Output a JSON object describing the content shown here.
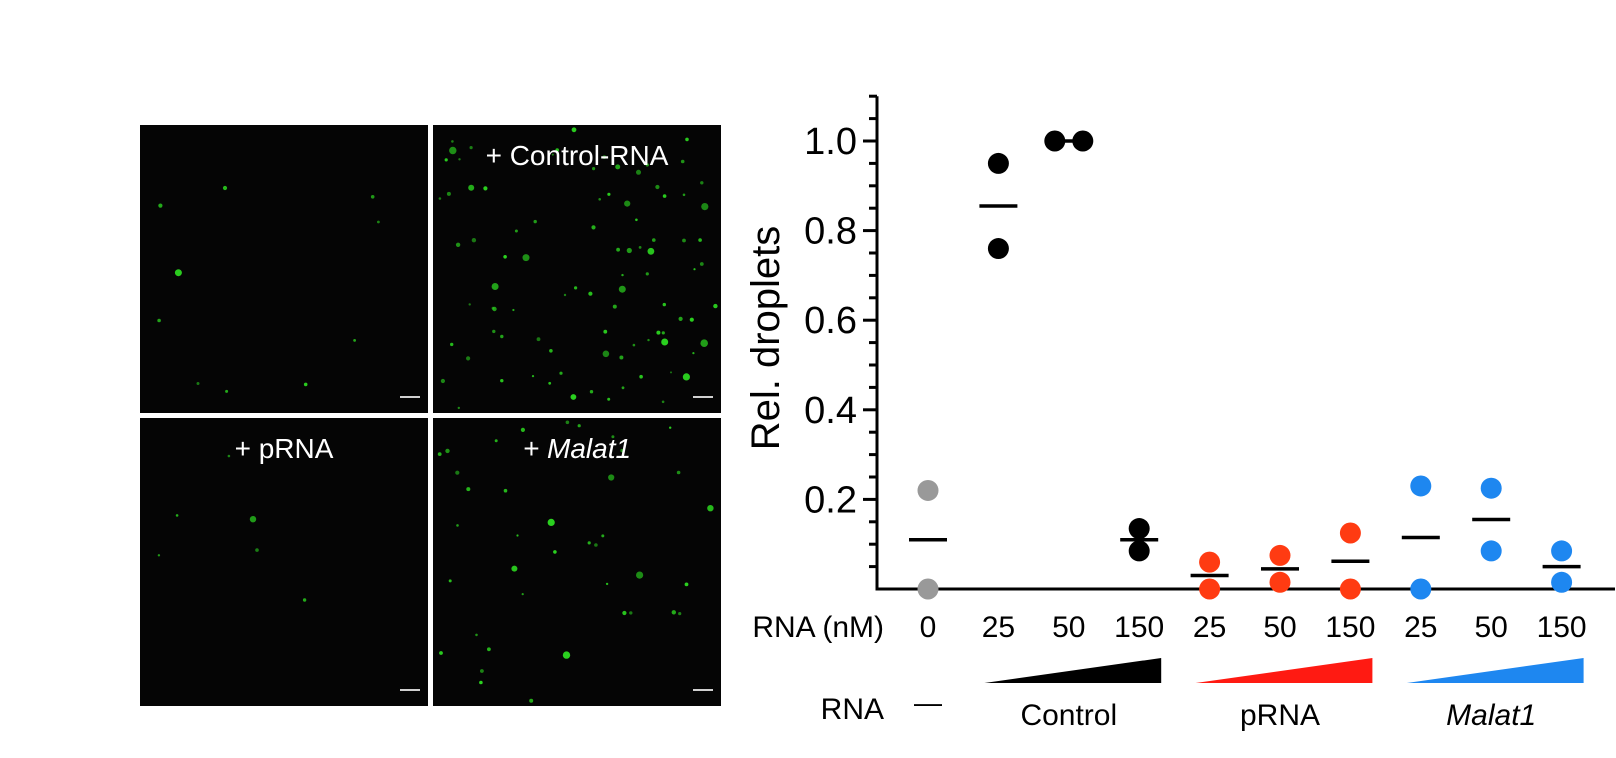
{
  "micrographs": {
    "panels": [
      {
        "label": "",
        "label_italic": false,
        "density": 10,
        "color": "#2bd21f"
      },
      {
        "label": "+ Control-RNA",
        "label_italic": false,
        "density": 90,
        "color": "#2bd21f"
      },
      {
        "label": "+ pRNA",
        "label_italic": false,
        "density": 6,
        "color": "#2bd21f"
      },
      {
        "label": "+ Malat1",
        "label_italic": true,
        "density": 40,
        "color": "#2bd21f"
      }
    ]
  },
  "chart_data": {
    "type": "scatter",
    "ylabel": "Rel. droplets",
    "xlabel": "RNA (nM)",
    "ylim": [
      0,
      1.1
    ],
    "yticks": [
      0.2,
      0.4,
      0.6,
      0.8,
      1.0
    ],
    "ytick_labels": [
      "0.2",
      "0.4",
      "0.6",
      "0.8",
      "1.0"
    ],
    "grid": false,
    "categories": [
      "0",
      "25",
      "50",
      "150",
      "25",
      "50",
      "150",
      "25",
      "50",
      "150"
    ],
    "points": [
      {
        "x": 0,
        "y": [
          0.22,
          0.0
        ],
        "mean": 0.11,
        "color": "#999999"
      },
      {
        "x": 1,
        "y": [
          0.95,
          0.76
        ],
        "mean": 0.855,
        "color": "#000000"
      },
      {
        "x": 2,
        "y": [
          1.0,
          1.0
        ],
        "mean": 1.0,
        "color": "#000000"
      },
      {
        "x": 3,
        "y": [
          0.135,
          0.085
        ],
        "mean": 0.11,
        "color": "#000000"
      },
      {
        "x": 4,
        "y": [
          0.06,
          0.0
        ],
        "mean": 0.03,
        "color": "#ff3b12"
      },
      {
        "x": 5,
        "y": [
          0.075,
          0.015
        ],
        "mean": 0.045,
        "color": "#ff3b12"
      },
      {
        "x": 6,
        "y": [
          0.125,
          0.0
        ],
        "mean": 0.062,
        "color": "#ff3b12"
      },
      {
        "x": 7,
        "y": [
          0.23,
          0.0
        ],
        "mean": 0.115,
        "color": "#1e87f0"
      },
      {
        "x": 8,
        "y": [
          0.225,
          0.085
        ],
        "mean": 0.155,
        "color": "#1e87f0"
      },
      {
        "x": 9,
        "y": [
          0.085,
          0.015
        ],
        "mean": 0.05,
        "color": "#1e87f0"
      }
    ],
    "groups": [
      {
        "label": "—",
        "italic": false,
        "from": 0,
        "to": 0,
        "color": "#000000",
        "wedge": false
      },
      {
        "label": "Control",
        "italic": false,
        "from": 1,
        "to": 3,
        "color": "#000000",
        "wedge": true
      },
      {
        "label": "pRNA",
        "italic": false,
        "from": 4,
        "to": 6,
        "color": "#ff1a12",
        "wedge": true
      },
      {
        "label": "Malat1",
        "italic": true,
        "from": 7,
        "to": 9,
        "color": "#1e87f0",
        "wedge": true
      }
    ],
    "group_row_label": "RNA"
  }
}
